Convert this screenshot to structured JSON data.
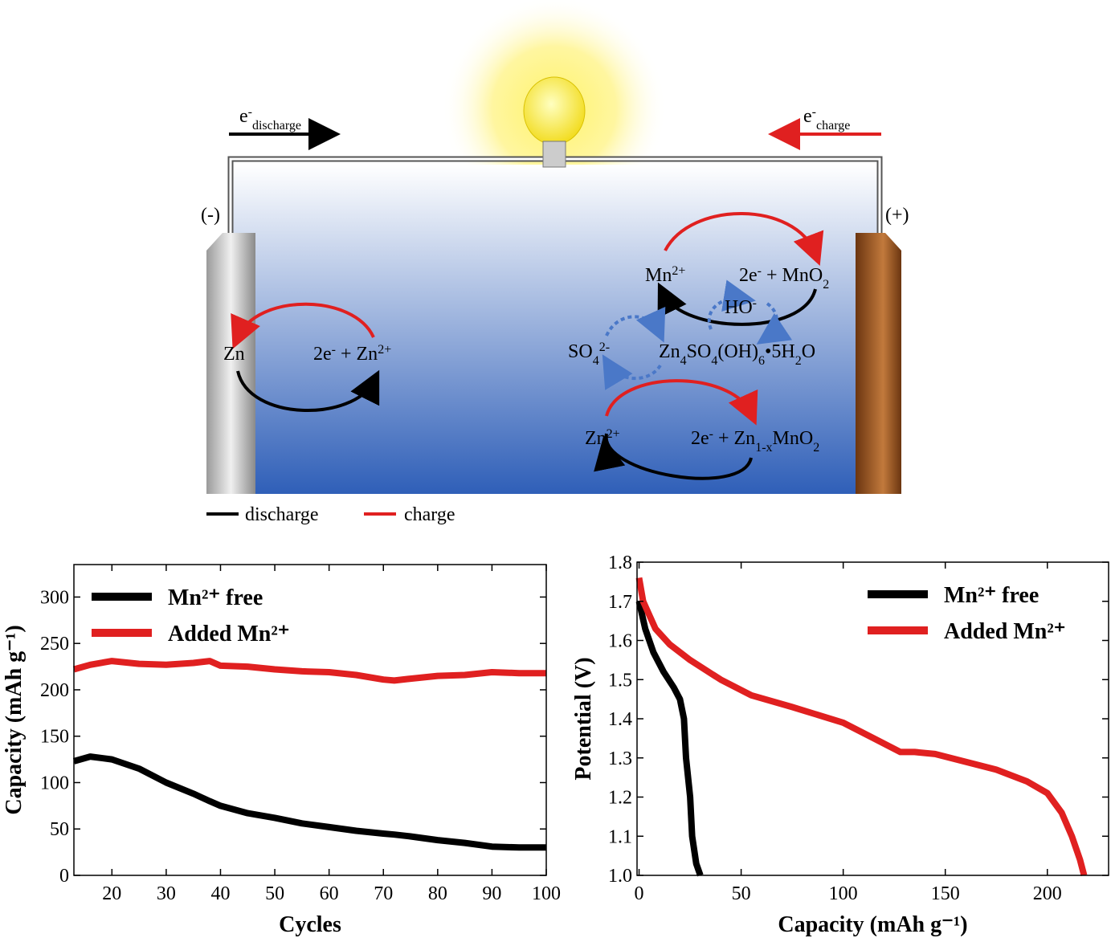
{
  "diagram": {
    "labels": [
      [
        {
          "t": "e"
        },
        {
          "sup": "-"
        },
        {
          "sub": "discharge"
        }
      ],
      [
        {
          "t": "e"
        },
        {
          "sup": "-"
        },
        {
          "sub": "charge"
        }
      ],
      [
        {
          "t": "(-)"
        }
      ],
      [
        {
          "t": "(+)"
        }
      ],
      [
        {
          "t": "Zn"
        }
      ],
      [
        {
          "t": "2e"
        },
        {
          "sup": "-"
        },
        {
          "t": " + Zn"
        },
        {
          "sup": "2+"
        }
      ],
      [
        {
          "t": "Mn"
        },
        {
          "sup": "2+"
        }
      ],
      [
        {
          "t": "2e"
        },
        {
          "sup": "-"
        },
        {
          "t": " + MnO"
        },
        {
          "sub": "2"
        }
      ],
      [
        {
          "t": "HO"
        },
        {
          "sup": "-"
        }
      ],
      [
        {
          "t": "SO"
        },
        {
          "sub": "4"
        },
        {
          "sup": "2-"
        }
      ],
      [
        {
          "t": "Zn"
        },
        {
          "sub": "4"
        },
        {
          "t": "SO"
        },
        {
          "sub": "4"
        },
        {
          "t": "(OH)"
        },
        {
          "sub": "6"
        },
        {
          "t": "•5H"
        },
        {
          "sub": "2"
        },
        {
          "t": "O"
        }
      ],
      [
        {
          "t": "Zn"
        },
        {
          "sup": "2+"
        }
      ],
      [
        {
          "t": "2e"
        },
        {
          "sup": "-"
        },
        {
          "t": " + Zn"
        },
        {
          "sub": "1-x"
        },
        {
          "t": "MnO"
        },
        {
          "sub": "2"
        }
      ],
      [
        {
          "t": "discharge"
        }
      ],
      [
        {
          "t": "charge"
        }
      ]
    ]
  },
  "chart_data": [
    {
      "type": "line",
      "xlabel": "Cycles",
      "ylabel": "Capacity (mAh g⁻¹)",
      "x": [
        13,
        16,
        20,
        25,
        30,
        35,
        38,
        40,
        45,
        50,
        55,
        60,
        65,
        70,
        72,
        75,
        80,
        85,
        90,
        95,
        100
      ],
      "series": [
        {
          "name": "Mn²⁺ free",
          "color": "#000000",
          "values": [
            123,
            128,
            125,
            115,
            100,
            88,
            80,
            75,
            67,
            62,
            56,
            52,
            48,
            45,
            44,
            42,
            38,
            35,
            31,
            30,
            30
          ]
        },
        {
          "name": "Added Mn²⁺",
          "color": "#e02020",
          "values": [
            222,
            227,
            231,
            228,
            227,
            229,
            231,
            226,
            225,
            222,
            220,
            219,
            216,
            211,
            210,
            212,
            215,
            216,
            219,
            218,
            218
          ]
        }
      ],
      "xlim": [
        13,
        100
      ],
      "xticks": [
        20,
        30,
        40,
        50,
        60,
        70,
        80,
        90,
        100
      ],
      "ylim": [
        0,
        335
      ],
      "yticks": [
        0,
        50,
        100,
        150,
        200,
        250,
        300
      ],
      "legend": "upper left"
    },
    {
      "type": "line",
      "xlabel": "Capacity (mAh g⁻¹)",
      "ylabel": "Potential (V)",
      "series": [
        {
          "name": "Mn²⁺ free",
          "color": "#000000",
          "x": [
            0,
            3,
            7,
            12,
            17,
            20,
            22,
            23,
            25,
            26,
            28,
            30
          ],
          "values": [
            1.7,
            1.63,
            1.57,
            1.52,
            1.48,
            1.45,
            1.4,
            1.3,
            1.2,
            1.1,
            1.03,
            1.0
          ]
        },
        {
          "name": "Added Mn²⁺",
          "color": "#e02020",
          "x": [
            0,
            2,
            8,
            15,
            25,
            40,
            55,
            75,
            100,
            115,
            128,
            135,
            145,
            160,
            175,
            190,
            200,
            207,
            212,
            216,
            218
          ],
          "values": [
            1.76,
            1.7,
            1.63,
            1.59,
            1.55,
            1.5,
            1.46,
            1.43,
            1.39,
            1.35,
            1.315,
            1.315,
            1.31,
            1.29,
            1.27,
            1.24,
            1.21,
            1.16,
            1.1,
            1.04,
            1.0
          ]
        }
      ],
      "xlim": [
        -1,
        230
      ],
      "xticks": [
        0,
        50,
        100,
        150,
        200
      ],
      "ylim": [
        1,
        1.8
      ],
      "yticks": [
        {
          "value": 1,
          "label": "1.0"
        },
        1.1,
        1.2,
        1.3,
        1.4,
        1.5,
        1.6,
        1.7,
        1.8
      ],
      "legend": "upper right"
    }
  ]
}
